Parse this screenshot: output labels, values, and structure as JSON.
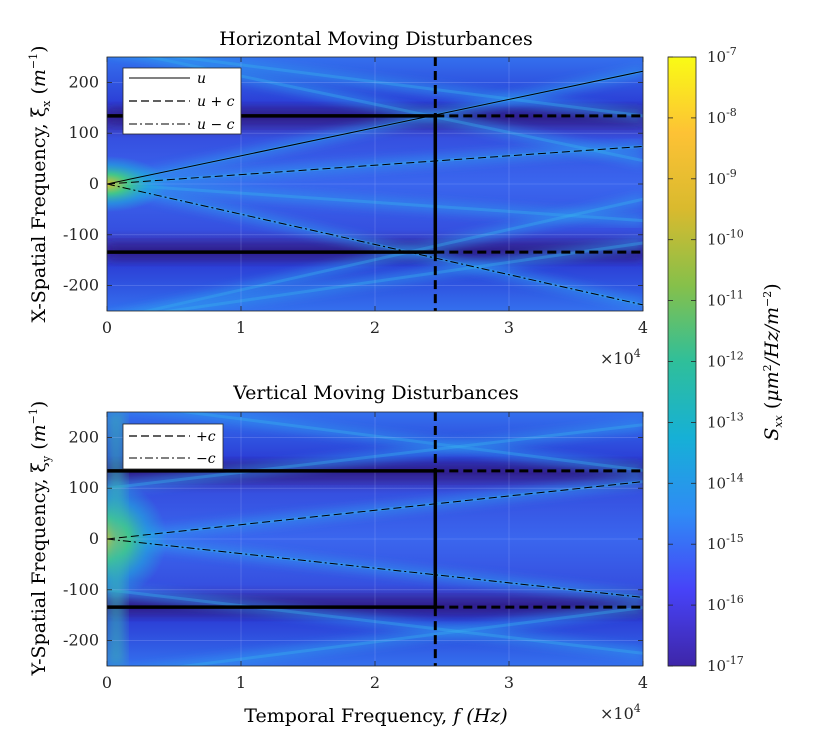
{
  "colormap": {
    "label": "S_xx (μm²/Hz/m⁻²)",
    "ticks": [
      {
        "base": "10",
        "exp": "-7",
        "log": -7
      },
      {
        "base": "10",
        "exp": "-8",
        "log": -8
      },
      {
        "base": "10",
        "exp": "-9",
        "log": -9
      },
      {
        "base": "10",
        "exp": "-10",
        "log": -10
      },
      {
        "base": "10",
        "exp": "-11",
        "log": -11
      },
      {
        "base": "10",
        "exp": "-12",
        "log": -12
      },
      {
        "base": "10",
        "exp": "-13",
        "log": -13
      },
      {
        "base": "10",
        "exp": "-14",
        "log": -14
      },
      {
        "base": "10",
        "exp": "-15",
        "log": -15
      },
      {
        "base": "10",
        "exp": "-16",
        "log": -16
      },
      {
        "base": "10",
        "exp": "-17",
        "log": -17
      }
    ],
    "range": [
      -17,
      -7
    ],
    "colors": [
      "#3e26a8",
      "#4743f8",
      "#2f8bf5",
      "#16b0d6",
      "#2fbf9a",
      "#86c04a",
      "#d9ba2e",
      "#fdc235",
      "#f9fb15"
    ]
  },
  "chart_data": [
    {
      "type": "heatmap",
      "title": "Horizontal Moving Disturbances",
      "xlabel": "",
      "ylabel": "X-Spatial Frequency, ξ_x (m⁻¹)",
      "ylabel_main": "X-Spatial Frequency, ξ",
      "ylabel_sub": "x",
      "ylabel_unit": "m",
      "ylabel_exp": "−1",
      "xlim": [
        0,
        40000
      ],
      "ylim": [
        -250,
        250
      ],
      "xticks": [
        0,
        10000,
        20000,
        30000,
        40000
      ],
      "xtick_labels": [
        "0",
        "1",
        "2",
        "3",
        "4"
      ],
      "yticks": [
        200,
        100,
        0,
        -100,
        -200
      ],
      "ytick_labels": [
        "200",
        "100",
        "0",
        "-100",
        "-200"
      ],
      "x_multiplier": {
        "base": "×10",
        "exp": "4"
      },
      "grid": true,
      "legend_position": "top-left",
      "series": [
        {
          "name": "u",
          "style": "solid",
          "x": [
            0,
            40000
          ],
          "y": [
            0,
            222
          ]
        },
        {
          "name": "u + c",
          "style": "dashed",
          "x": [
            0,
            40000
          ],
          "y": [
            0,
            74
          ]
        },
        {
          "name": "u − c",
          "style": "dashdot",
          "x": [
            0,
            40000
          ],
          "y": [
            0,
            -238
          ]
        }
      ],
      "cutoff": {
        "f": 24500,
        "xi": 134
      },
      "ridges": [
        {
          "x": [
            0,
            40000
          ],
          "y": [
            0,
            222
          ]
        },
        {
          "x": [
            0,
            40000
          ],
          "y": [
            0,
            -238
          ]
        },
        {
          "x": [
            0,
            40000
          ],
          "y": [
            0,
            74
          ]
        },
        {
          "x": [
            0,
            40000
          ],
          "y": [
            0,
            -72
          ]
        },
        {
          "x": [
            0,
            40000
          ],
          "y": [
            268,
            46
          ]
        },
        {
          "x": [
            0,
            40000
          ],
          "y": [
            -268,
            -30
          ]
        },
        {
          "x": [
            0,
            40000
          ],
          "y": [
            -268,
            -116
          ]
        },
        {
          "x": [
            0,
            40000
          ],
          "y": [
            268,
            134
          ]
        }
      ],
      "quiet_bands": [
        134,
        -134
      ]
    },
    {
      "type": "heatmap",
      "title": "Vertical Moving Disturbances",
      "xlabel": "Temporal Frequency, f (Hz)",
      "xlabel_main": "Temporal Frequency, ",
      "xlabel_var": "f",
      "xlabel_unit": "(Hz)",
      "ylabel": "Y-Spatial Frequency, ξ_y (m⁻¹)",
      "ylabel_main": "Y-Spatial Frequency, ξ",
      "ylabel_sub": "y",
      "ylabel_unit": "m",
      "ylabel_exp": "−1",
      "xlim": [
        0,
        40000
      ],
      "ylim": [
        -250,
        250
      ],
      "xticks": [
        0,
        10000,
        20000,
        30000,
        40000
      ],
      "xtick_labels": [
        "0",
        "1",
        "2",
        "3",
        "4"
      ],
      "yticks": [
        200,
        100,
        0,
        -100,
        -200
      ],
      "ytick_labels": [
        "200",
        "100",
        "0",
        "-100",
        "-200"
      ],
      "x_multiplier": {
        "base": "×10",
        "exp": "4"
      },
      "grid": true,
      "legend_position": "top-left",
      "series": [
        {
          "name": "+c",
          "style": "dashed",
          "x": [
            0,
            40000
          ],
          "y": [
            0,
            113
          ]
        },
        {
          "name": "−c",
          "style": "dashdot",
          "x": [
            0,
            40000
          ],
          "y": [
            0,
            -115
          ]
        }
      ],
      "cutoff": {
        "f": 24500,
        "xi": 134
      },
      "ridges": [
        {
          "x": [
            0,
            40000
          ],
          "y": [
            0,
            113
          ]
        },
        {
          "x": [
            0,
            40000
          ],
          "y": [
            0,
            -115
          ]
        },
        {
          "x": [
            0,
            40000
          ],
          "y": [
            270,
            135
          ]
        },
        {
          "x": [
            0,
            40000
          ],
          "y": [
            -270,
            -135
          ]
        },
        {
          "x": [
            0,
            40000
          ],
          "y": [
            100,
            225
          ]
        },
        {
          "x": [
            0,
            40000
          ],
          "y": [
            -100,
            -225
          ]
        }
      ],
      "quiet_bands": [
        134,
        -134
      ]
    }
  ]
}
